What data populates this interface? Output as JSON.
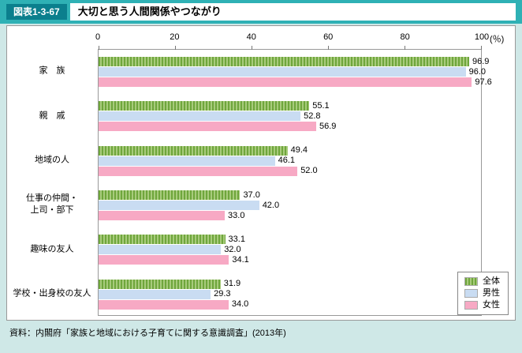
{
  "header": {
    "figure_label": "図表1-3-67",
    "title": "大切と思う人間関係やつながり"
  },
  "source": "資料：内閣府「家族と地域における子育てに関する意識調査」(2013年)",
  "chart_data": {
    "type": "bar",
    "orientation": "horizontal",
    "title": "大切と思う人間関係やつながり",
    "categories": [
      "家　族",
      "親　戚",
      "地域の人",
      "仕事の仲間・\n上司・部下",
      "趣味の友人",
      "学校・出身校の友人"
    ],
    "series": [
      {
        "name": "全体",
        "pattern": "hatch",
        "color": "#6fa63c",
        "color2": "#a8cb7c",
        "values": [
          96.9,
          55.1,
          49.4,
          37.0,
          33.1,
          31.9
        ]
      },
      {
        "name": "男性",
        "color": "#c9dcf2",
        "values": [
          96.0,
          52.8,
          46.1,
          42.0,
          32.0,
          29.3
        ]
      },
      {
        "name": "女性",
        "color": "#f7a9c4",
        "values": [
          97.6,
          56.9,
          52.0,
          33.0,
          34.1,
          34.0
        ]
      }
    ],
    "x_ticks": [
      0,
      20,
      40,
      60,
      80,
      100
    ],
    "x_unit": "(％)",
    "xlim": [
      0,
      100
    ],
    "grid": false,
    "legend_position": "bottom-right",
    "colors": {
      "page_background": "#cfe8e7",
      "header_strip": "#2fb1b5",
      "figure_tag": "#0b7f8d"
    }
  }
}
